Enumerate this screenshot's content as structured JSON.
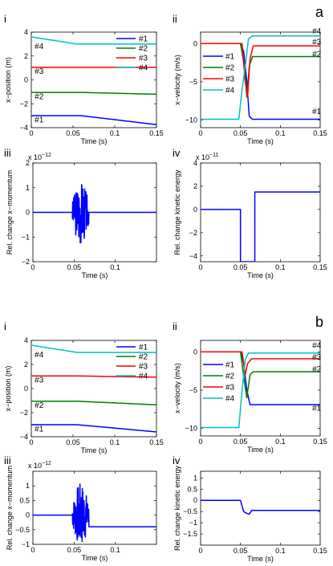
{
  "figure_labels": [
    "a",
    "b"
  ],
  "chart_data": [
    {
      "id": "a-i",
      "type": "line",
      "label": "i",
      "xlabel": "Time (s)",
      "ylabel": "x−position (m)",
      "xlim": [
        0,
        0.15
      ],
      "ylim": [
        -4,
        4
      ],
      "xticks": [
        0,
        0.05,
        0.1,
        0.15
      ],
      "xtick_labels": [
        "0",
        "0.05",
        "0.1",
        "0.15"
      ],
      "yticks": [
        -4,
        -2,
        0,
        2,
        4
      ],
      "ytick_labels": [
        "−4",
        "−2",
        "0",
        "2",
        "4"
      ],
      "legend": "top-right",
      "series": [
        {
          "name": "#1",
          "color": "#0000ff",
          "points": [
            [
              0,
              -3
            ],
            [
              0.06,
              -3
            ],
            [
              0.15,
              -3.75
            ]
          ]
        },
        {
          "name": "#2",
          "color": "#007f00",
          "points": [
            [
              0,
              -1.05
            ],
            [
              0.06,
              -1.05
            ],
            [
              0.15,
              -1.2
            ]
          ]
        },
        {
          "name": "#3",
          "color": "#ff0000",
          "points": [
            [
              0,
              1.05
            ],
            [
              0.15,
              1.05
            ]
          ]
        },
        {
          "name": "#4",
          "color": "#00bfbf",
          "points": [
            [
              0,
              3.6
            ],
            [
              0.055,
              3.0
            ],
            [
              0.15,
              3.0
            ]
          ]
        }
      ],
      "annotations": [
        {
          "text": "#1",
          "x": 0.004,
          "y": -3.55
        },
        {
          "text": "#2",
          "x": 0.004,
          "y": -1.6
        },
        {
          "text": "#3",
          "x": 0.004,
          "y": 0.5
        },
        {
          "text": "#4",
          "x": 0.004,
          "y": 2.6
        }
      ]
    },
    {
      "id": "a-ii",
      "type": "line",
      "label": "ii",
      "xlabel": "Time (s)",
      "ylabel": "x−velocity (m/s)",
      "xlim": [
        0,
        0.15
      ],
      "ylim": [
        -11,
        1.5
      ],
      "xticks": [
        0,
        0.05,
        0.1,
        0.15
      ],
      "xtick_labels": [
        "0",
        "0.05",
        "0.1",
        "0.15"
      ],
      "yticks": [
        -10,
        -5,
        0
      ],
      "ytick_labels": [
        "−10",
        "−5",
        "0"
      ],
      "legend": "left",
      "series": [
        {
          "name": "#1",
          "color": "#0000ff",
          "points": [
            [
              0,
              0
            ],
            [
              0.05,
              0
            ],
            [
              0.054,
              -1
            ],
            [
              0.058,
              -5
            ],
            [
              0.061,
              -9.5
            ],
            [
              0.065,
              -9.9
            ],
            [
              0.15,
              -9.9
            ]
          ]
        },
        {
          "name": "#2",
          "color": "#007f00",
          "points": [
            [
              0,
              0
            ],
            [
              0.05,
              0
            ],
            [
              0.055,
              -3
            ],
            [
              0.058,
              -7
            ],
            [
              0.061,
              -3
            ],
            [
              0.065,
              -1.7
            ],
            [
              0.15,
              -1.7
            ]
          ]
        },
        {
          "name": "#3",
          "color": "#ff0000",
          "points": [
            [
              0,
              0
            ],
            [
              0.052,
              0
            ],
            [
              0.056,
              -5
            ],
            [
              0.059,
              -7
            ],
            [
              0.062,
              -2
            ],
            [
              0.066,
              -0.3
            ],
            [
              0.15,
              -0.3
            ]
          ]
        },
        {
          "name": "#4",
          "color": "#00bfbf",
          "points": [
            [
              0,
              -9.9
            ],
            [
              0.048,
              -9.9
            ],
            [
              0.052,
              -6
            ],
            [
              0.056,
              -3
            ],
            [
              0.06,
              0.6
            ],
            [
              0.065,
              1.0
            ],
            [
              0.15,
              1.0
            ]
          ]
        }
      ],
      "annotations": [
        {
          "text": "#4",
          "x": 0.14,
          "y": 1.3
        },
        {
          "text": "#3",
          "x": 0.14,
          "y": -0.15
        },
        {
          "text": "#2",
          "x": 0.14,
          "y": -1.7
        },
        {
          "text": "#1",
          "x": 0.14,
          "y": -9.2
        }
      ]
    },
    {
      "id": "a-iii",
      "type": "line",
      "label": "iii",
      "xlabel": "Time (s)",
      "ylabel": "Rel. change x−momentum",
      "exponent_label": "x 10",
      "exponent": "−12",
      "xlim": [
        0,
        0.15
      ],
      "ylim": [
        -2,
        2
      ],
      "xticks": [
        0,
        0.05,
        0.1
      ],
      "xtick_labels": [
        "0",
        "0.05",
        "0.1"
      ],
      "yticks": [
        -2,
        -1,
        0,
        1,
        2
      ],
      "ytick_labels": [
        "−2",
        "−1",
        "0",
        "1",
        "2"
      ],
      "series": [
        {
          "color": "#0000ff",
          "baseline": 0,
          "noise": {
            "start": 0.048,
            "end": 0.068,
            "amplitude": 1.3,
            "seed": 3
          }
        }
      ]
    },
    {
      "id": "a-iv",
      "type": "line",
      "label": "iv",
      "xlabel": "Time (s)",
      "ylabel": "Rel. change kinetic energy",
      "exponent_label": "x 10",
      "exponent": "−11",
      "xlim": [
        0,
        0.15
      ],
      "ylim": [
        -4.5,
        4
      ],
      "xticks": [
        0,
        0.05,
        0.1,
        0.15
      ],
      "xtick_labels": [
        "0",
        "0.05",
        "0.1",
        "0.15"
      ],
      "yticks": [
        -4,
        -2,
        0,
        2,
        4
      ],
      "ytick_labels": [
        "−4",
        "−2",
        "0",
        "2",
        "4"
      ],
      "series": [
        {
          "color": "#0000ff",
          "points": [
            [
              0,
              0
            ],
            [
              0.05,
              0
            ],
            [
              0.05,
              -4.5
            ],
            [
              0.068,
              -4.5
            ],
            [
              0.068,
              1.5
            ],
            [
              0.15,
              1.5
            ]
          ]
        }
      ]
    },
    {
      "id": "b-i",
      "type": "line",
      "label": "i",
      "xlabel": "Time (s)",
      "ylabel": "x−position (m)",
      "xlim": [
        0,
        0.15
      ],
      "ylim": [
        -4,
        4
      ],
      "xticks": [
        0,
        0.05,
        0.1,
        0.15
      ],
      "xtick_labels": [
        "0",
        "0.05",
        "0.1",
        "0.15"
      ],
      "yticks": [
        -4,
        -2,
        0,
        2,
        4
      ],
      "ytick_labels": [
        "−4",
        "−2",
        "0",
        "2",
        "4"
      ],
      "legend": "top-right",
      "series": [
        {
          "name": "#1",
          "color": "#0000ff",
          "points": [
            [
              0,
              -3
            ],
            [
              0.055,
              -3
            ],
            [
              0.15,
              -3.6
            ]
          ]
        },
        {
          "name": "#2",
          "color": "#007f00",
          "points": [
            [
              0,
              -1.05
            ],
            [
              0.055,
              -1.05
            ],
            [
              0.15,
              -1.35
            ]
          ]
        },
        {
          "name": "#3",
          "color": "#ff0000",
          "points": [
            [
              0,
              1.05
            ],
            [
              0.055,
              1.05
            ],
            [
              0.15,
              0.95
            ]
          ]
        },
        {
          "name": "#4",
          "color": "#00bfbf",
          "points": [
            [
              0,
              3.6
            ],
            [
              0.055,
              3.0
            ],
            [
              0.15,
              3.0
            ]
          ]
        }
      ],
      "annotations": [
        {
          "text": "#1",
          "x": 0.004,
          "y": -3.55
        },
        {
          "text": "#2",
          "x": 0.004,
          "y": -1.6
        },
        {
          "text": "#3",
          "x": 0.004,
          "y": 0.5
        },
        {
          "text": "#4",
          "x": 0.004,
          "y": 2.6
        }
      ]
    },
    {
      "id": "b-ii",
      "type": "line",
      "label": "ii",
      "xlabel": "Time (s)",
      "ylabel": "x−velocity (m/s)",
      "xlim": [
        0,
        0.15
      ],
      "ylim": [
        -11,
        1.5
      ],
      "xticks": [
        0,
        0.05,
        0.1,
        0.15
      ],
      "xtick_labels": [
        "0",
        "0.05",
        "0.1",
        "0.15"
      ],
      "yticks": [
        -10,
        -5,
        0
      ],
      "ytick_labels": [
        "−10",
        "−5",
        "0"
      ],
      "legend": "left",
      "series": [
        {
          "name": "#1",
          "color": "#0000ff",
          "points": [
            [
              0,
              0
            ],
            [
              0.05,
              0
            ],
            [
              0.054,
              -1.5
            ],
            [
              0.058,
              -5
            ],
            [
              0.062,
              -6.9
            ],
            [
              0.15,
              -6.9
            ]
          ]
        },
        {
          "name": "#2",
          "color": "#007f00",
          "points": [
            [
              0,
              0
            ],
            [
              0.05,
              0
            ],
            [
              0.055,
              -4
            ],
            [
              0.058,
              -6
            ],
            [
              0.062,
              -3
            ],
            [
              0.066,
              -2.6
            ],
            [
              0.15,
              -2.6
            ]
          ]
        },
        {
          "name": "#3",
          "color": "#ff0000",
          "points": [
            [
              0,
              0
            ],
            [
              0.052,
              0
            ],
            [
              0.056,
              -3
            ],
            [
              0.059,
              -1.5
            ],
            [
              0.064,
              -0.9
            ],
            [
              0.15,
              -0.9
            ]
          ]
        },
        {
          "name": "#4",
          "color": "#00bfbf",
          "points": [
            [
              0,
              -9.9
            ],
            [
              0.048,
              -9.9
            ],
            [
              0.052,
              -5
            ],
            [
              0.056,
              -1
            ],
            [
              0.06,
              -0.15
            ],
            [
              0.15,
              -0.15
            ]
          ]
        }
      ],
      "annotations": [
        {
          "text": "#4",
          "x": 0.14,
          "y": 0.5
        },
        {
          "text": "#3",
          "x": 0.14,
          "y": -1.0
        },
        {
          "text": "#2",
          "x": 0.14,
          "y": -2.6
        },
        {
          "text": "#1",
          "x": 0.14,
          "y": -7.7
        }
      ]
    },
    {
      "id": "b-iii",
      "type": "line",
      "label": "iii",
      "xlabel": "Time (s)",
      "ylabel": "Rel. change x−momentum",
      "exponent_label": "x 10",
      "exponent": "−12",
      "xlim": [
        0,
        0.15
      ],
      "ylim": [
        -1,
        1.5
      ],
      "xticks": [
        0,
        0.05,
        0.1
      ],
      "xtick_labels": [
        "0",
        "0.05",
        "0.1"
      ],
      "yticks": [
        -1,
        -0.5,
        0,
        0.5,
        1
      ],
      "ytick_labels": [
        "−1",
        "−0.5",
        "0",
        "0.5",
        "1"
      ],
      "series": [
        {
          "color": "#0000ff",
          "baseline": 0,
          "after": -0.4,
          "noise": {
            "start": 0.048,
            "end": 0.068,
            "amplitude": 1.1,
            "seed": 7
          }
        }
      ]
    },
    {
      "id": "b-iv",
      "type": "line",
      "label": "iv",
      "xlabel": "Time (s)",
      "ylabel": "Rel. change kinetic energy",
      "xlim": [
        0,
        0.15
      ],
      "ylim": [
        -2,
        1.3
      ],
      "xticks": [
        0,
        0.05,
        0.1,
        0.15
      ],
      "xtick_labels": [
        "0",
        "0.05",
        "0.1",
        "0.15"
      ],
      "yticks": [
        -1.5,
        -1,
        -0.5,
        0,
        0.5,
        1
      ],
      "ytick_labels": [
        "−1.5",
        "−1",
        "−0.5",
        "0",
        "0.5",
        "1"
      ],
      "series": [
        {
          "color": "#0000ff",
          "points": [
            [
              0,
              0
            ],
            [
              0.05,
              0
            ],
            [
              0.054,
              -0.5
            ],
            [
              0.058,
              -0.58
            ],
            [
              0.061,
              -0.62
            ],
            [
              0.064,
              -0.45
            ],
            [
              0.15,
              -0.45
            ]
          ]
        }
      ]
    }
  ]
}
